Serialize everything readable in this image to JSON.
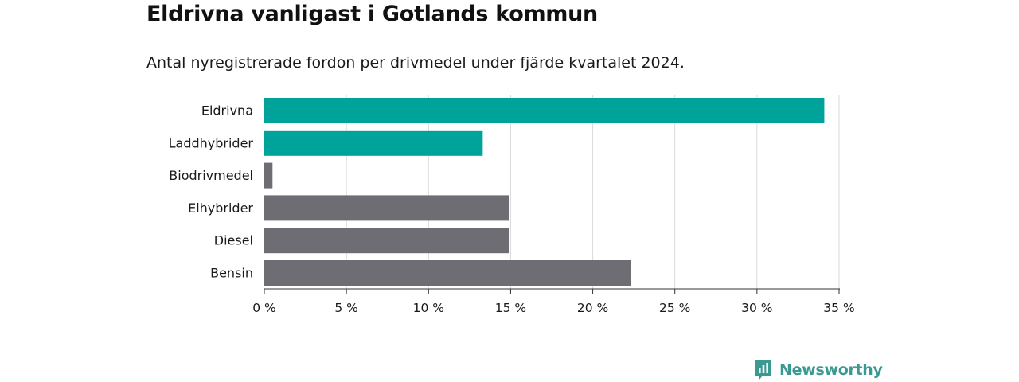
{
  "title": "Eldrivna vanligast i Gotlands kommun",
  "subtitle": "Antal nyregistrerade fordon per drivmedel under fjärde kvartalet 2024.",
  "brand": {
    "name": "Newsworthy",
    "icon": "bar-chart-badge-icon"
  },
  "colors": {
    "highlight": "#00a39a",
    "other": "#6e6d74",
    "grid": "#d9d9d9",
    "brand": "#3a9a92"
  },
  "chart_data": {
    "type": "bar",
    "orientation": "horizontal",
    "categories": [
      "Eldrivna",
      "Laddhybrider",
      "Biodrivmedel",
      "Elhybrider",
      "Diesel",
      "Bensin"
    ],
    "values": [
      34.1,
      13.3,
      0.5,
      14.9,
      14.9,
      22.3
    ],
    "highlighted": [
      true,
      true,
      false,
      false,
      false,
      false
    ],
    "xlim": [
      0,
      35
    ],
    "xticks": [
      0,
      5,
      10,
      15,
      20,
      25,
      30,
      35
    ],
    "tick_suffix": " %",
    "grid": true,
    "xlabel": "",
    "ylabel": ""
  }
}
